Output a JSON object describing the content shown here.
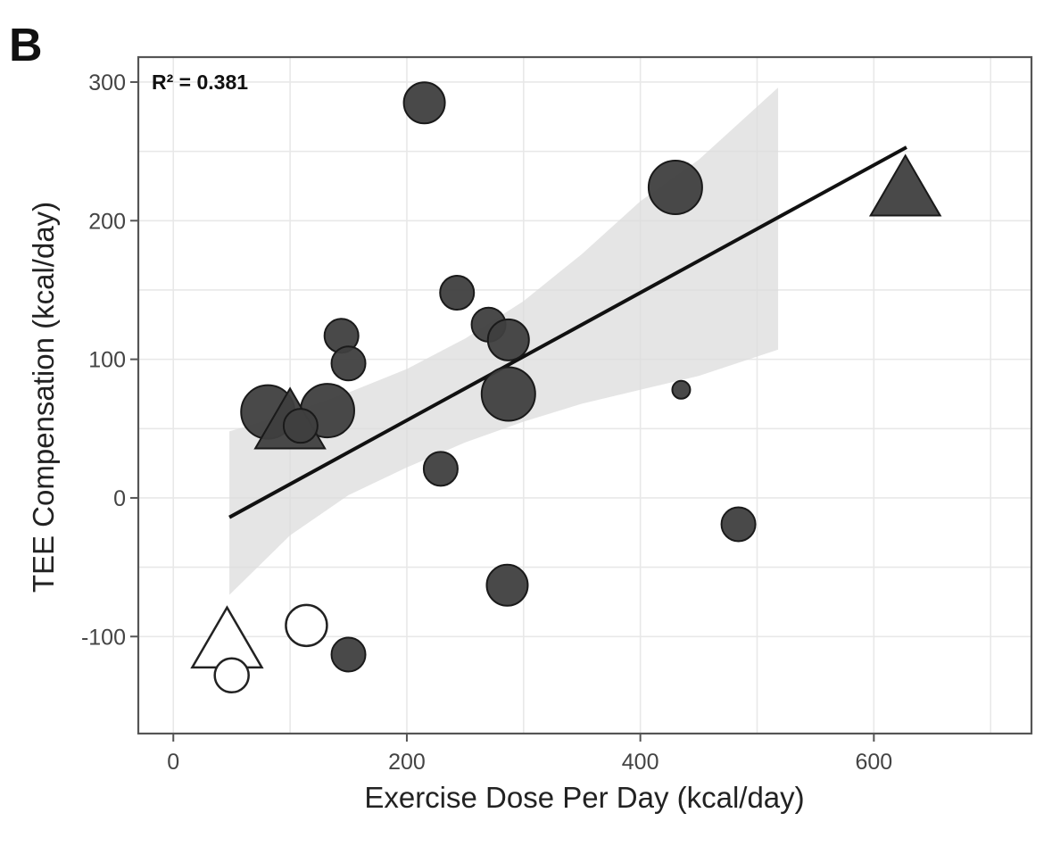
{
  "panel_letter": "B",
  "chart_data": {
    "type": "scatter",
    "title": "",
    "xlabel": "Exercise Dose Per Day (kcal/day)",
    "ylabel": "TEE Compensation (kcal/day)",
    "xlim": [
      -30,
      735
    ],
    "ylim": [
      -170,
      318
    ],
    "xticks": [
      0,
      200,
      400,
      600
    ],
    "yticks": [
      -100,
      0,
      100,
      200,
      300
    ],
    "xtick_labels": [
      "0",
      "200",
      "400",
      "600"
    ],
    "ytick_labels": [
      "-100",
      "0",
      "100",
      "200",
      "300"
    ],
    "grid": true,
    "annotation": "R² = 0.381",
    "fit": {
      "x": [
        48,
        628
      ],
      "y": [
        -14,
        253
      ]
    },
    "confidence_band": {
      "x": [
        48,
        100,
        150,
        200,
        250,
        300,
        350,
        400,
        450,
        518
      ],
      "upper": [
        48,
        61,
        76,
        93,
        115,
        142,
        176,
        214,
        244,
        296
      ],
      "lower": [
        -70,
        -27,
        2,
        22,
        40,
        55,
        68,
        78,
        88,
        107
      ]
    },
    "points": [
      {
        "x": 215,
        "y": 285,
        "size": 3,
        "shape": "circle",
        "filled": true
      },
      {
        "x": 430,
        "y": 224,
        "size": 4,
        "shape": "circle",
        "filled": true
      },
      {
        "x": 627,
        "y": 223,
        "size": 4,
        "shape": "triangle",
        "filled": true
      },
      {
        "x": 243,
        "y": 148,
        "size": 2,
        "shape": "circle",
        "filled": true
      },
      {
        "x": 270,
        "y": 125,
        "size": 2,
        "shape": "circle",
        "filled": true
      },
      {
        "x": 144,
        "y": 117,
        "size": 2,
        "shape": "circle",
        "filled": true
      },
      {
        "x": 287,
        "y": 114,
        "size": 3,
        "shape": "circle",
        "filled": true
      },
      {
        "x": 150,
        "y": 97,
        "size": 2,
        "shape": "circle",
        "filled": true
      },
      {
        "x": 287,
        "y": 75,
        "size": 4,
        "shape": "circle",
        "filled": true
      },
      {
        "x": 435,
        "y": 78,
        "size": 1,
        "shape": "circle",
        "filled": true
      },
      {
        "x": 81,
        "y": 62,
        "size": 4,
        "shape": "circle",
        "filled": true
      },
      {
        "x": 132,
        "y": 63,
        "size": 4,
        "shape": "circle",
        "filled": true
      },
      {
        "x": 100,
        "y": 55,
        "size": 4,
        "shape": "triangle",
        "filled": true
      },
      {
        "x": 109,
        "y": 52,
        "size": 2,
        "shape": "circle",
        "filled": true
      },
      {
        "x": 229,
        "y": 21,
        "size": 2,
        "shape": "circle",
        "filled": true
      },
      {
        "x": 484,
        "y": -19,
        "size": 2,
        "shape": "circle",
        "filled": true
      },
      {
        "x": 286,
        "y": -63,
        "size": 3,
        "shape": "circle",
        "filled": true
      },
      {
        "x": 150,
        "y": -113,
        "size": 2,
        "shape": "circle",
        "filled": true
      },
      {
        "x": 114,
        "y": -92,
        "size": 3,
        "shape": "circle",
        "filled": false
      },
      {
        "x": 46,
        "y": -103,
        "size": 4,
        "shape": "triangle",
        "filled": false
      },
      {
        "x": 50,
        "y": -128,
        "size": 2,
        "shape": "circle",
        "filled": false
      }
    ],
    "size_radii_px": [
      0,
      10,
      19,
      23,
      30
    ]
  }
}
